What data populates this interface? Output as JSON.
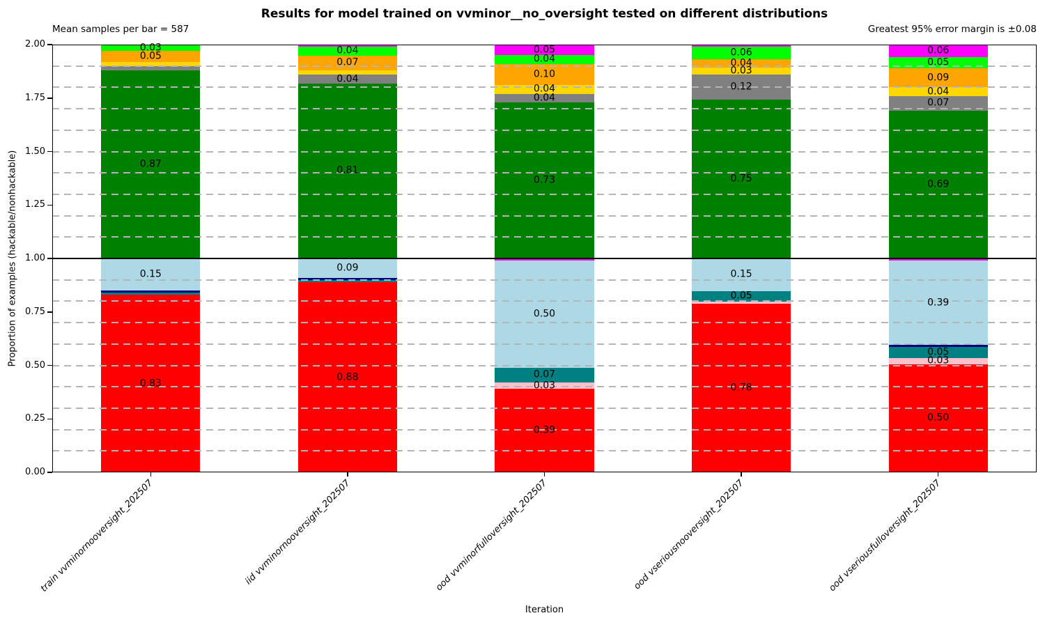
{
  "title": "Results for model trained on vvminor__no_oversight tested on different distributions",
  "annotations": {
    "mean_samples": "Mean samples per bar = 587",
    "error_margin": "Greatest 95% error margin is ±0.08"
  },
  "chart_data": {
    "type": "bar",
    "subtype": "stacked-double-proportion",
    "title": "Results for model trained on vvminor__no_oversight tested on different distributions",
    "xlabel": "Iteration",
    "ylabel": "Proportion of examples (hackable/nonhackable)",
    "ylim": [
      0,
      2
    ],
    "yticks": [
      "0.00",
      "0.25",
      "0.50",
      "0.75",
      "1.00",
      "1.25",
      "1.50",
      "1.75",
      "2.00"
    ],
    "grid": {
      "interval": 0.1,
      "style": "dashed",
      "color": "#b5b5b5",
      "on_top_of_bars": true
    },
    "midline": {
      "y": 1.0,
      "color": "#000000"
    },
    "bar_width_fraction": 0.503,
    "legend": "none",
    "colors": {
      "red": "#ff0000",
      "pink": "#ffc0cb",
      "teal": "#008080",
      "navy": "#000080",
      "lightblue": "#add8e6",
      "magenta": "#ff00ff",
      "darkgreen": "#008000",
      "gray": "#808080",
      "gold": "#ffd700",
      "orange": "#ffa500",
      "lime": "#00ff00"
    },
    "categories": [
      "train vvminornooversight_202507",
      "iid vvminornooversight_202507",
      "ood vvminorfulloversight_202507",
      "ood vseriousnooversight_202507",
      "ood vseriousfulloversight_202507"
    ],
    "bars": [
      {
        "category": "train vvminornooversight_202507",
        "bottom_segments": [
          {
            "color_key": "red",
            "value": 0.83,
            "label": "0.83"
          },
          {
            "color_key": "teal",
            "value": 0.01
          },
          {
            "color_key": "navy",
            "value": 0.01
          },
          {
            "color_key": "lightblue",
            "value": 0.15,
            "label": "0.15"
          }
        ],
        "top_segments": [
          {
            "color_key": "darkgreen",
            "value": 0.87,
            "label": "0.87"
          },
          {
            "color_key": "gray",
            "value": 0.02
          },
          {
            "color_key": "gold",
            "value": 0.02
          },
          {
            "color_key": "orange",
            "value": 0.05,
            "label": "0.05"
          },
          {
            "color_key": "lime",
            "value": 0.03,
            "label": "0.03"
          }
        ]
      },
      {
        "category": "iid vvminornooversight_202507",
        "bottom_segments": [
          {
            "color_key": "red",
            "value": 0.88,
            "label": "0.88"
          },
          {
            "color_key": "teal",
            "value": 0.01
          },
          {
            "color_key": "navy",
            "value": 0.01
          },
          {
            "color_key": "lightblue",
            "value": 0.09,
            "label": "0.09"
          }
        ],
        "top_segments": [
          {
            "color_key": "darkgreen",
            "value": 0.81,
            "label": "0.81"
          },
          {
            "color_key": "gray",
            "value": 0.04,
            "label": "0.04"
          },
          {
            "color_key": "gold",
            "value": 0.02
          },
          {
            "color_key": "orange",
            "value": 0.07,
            "label": "0.07"
          },
          {
            "color_key": "lime",
            "value": 0.04,
            "label": "0.04"
          },
          {
            "color_key": "magenta",
            "value": 0.01
          }
        ]
      },
      {
        "category": "ood vvminorfulloversight_202507",
        "bottom_segments": [
          {
            "color_key": "red",
            "value": 0.39,
            "label": "0.39"
          },
          {
            "color_key": "pink",
            "value": 0.03,
            "label": "0.03"
          },
          {
            "color_key": "teal",
            "value": 0.07,
            "label": "0.07"
          },
          {
            "color_key": "lightblue",
            "value": 0.5,
            "label": "0.50"
          },
          {
            "color_key": "magenta",
            "value": 0.01
          }
        ],
        "top_segments": [
          {
            "color_key": "darkgreen",
            "value": 0.73,
            "label": "0.73"
          },
          {
            "color_key": "gray",
            "value": 0.04,
            "label": "0.04"
          },
          {
            "color_key": "gold",
            "value": 0.04,
            "label": "0.04"
          },
          {
            "color_key": "orange",
            "value": 0.1,
            "label": "0.10"
          },
          {
            "color_key": "lime",
            "value": 0.04,
            "label": "0.04"
          },
          {
            "color_key": "magenta",
            "value": 0.05,
            "label": "0.05"
          }
        ]
      },
      {
        "category": "ood vseriousnooversight_202507",
        "bottom_segments": [
          {
            "color_key": "red",
            "value": 0.78,
            "label": "0.78"
          },
          {
            "color_key": "pink",
            "value": 0.01
          },
          {
            "color_key": "teal",
            "value": 0.05,
            "label": "0.05"
          },
          {
            "color_key": "lightblue",
            "value": 0.15,
            "label": "0.15"
          }
        ],
        "top_segments": [
          {
            "color_key": "darkgreen",
            "value": 0.75,
            "label": "0.75"
          },
          {
            "color_key": "gray",
            "value": 0.12,
            "label": "0.12"
          },
          {
            "color_key": "gold",
            "value": 0.03,
            "label": "0.03"
          },
          {
            "color_key": "orange",
            "value": 0.04,
            "label": "0.04"
          },
          {
            "color_key": "lime",
            "value": 0.06,
            "label": "0.06"
          },
          {
            "color_key": "magenta",
            "value": 0.01
          }
        ]
      },
      {
        "category": "ood vseriousfulloversight_202507",
        "bottom_segments": [
          {
            "color_key": "red",
            "value": 0.5,
            "label": "0.50"
          },
          {
            "color_key": "pink",
            "value": 0.03,
            "label": "0.03"
          },
          {
            "color_key": "teal",
            "value": 0.05,
            "label": "0.05"
          },
          {
            "color_key": "navy",
            "value": 0.01
          },
          {
            "color_key": "lightblue",
            "value": 0.39,
            "label": "0.39"
          },
          {
            "color_key": "magenta",
            "value": 0.01
          }
        ],
        "top_segments": [
          {
            "color_key": "darkgreen",
            "value": 0.69,
            "label": "0.69"
          },
          {
            "color_key": "gray",
            "value": 0.07,
            "label": "0.07"
          },
          {
            "color_key": "gold",
            "value": 0.04,
            "label": "0.04"
          },
          {
            "color_key": "orange",
            "value": 0.09,
            "label": "0.09"
          },
          {
            "color_key": "lime",
            "value": 0.05,
            "label": "0.05"
          },
          {
            "color_key": "magenta",
            "value": 0.06,
            "label": "0.06"
          }
        ]
      }
    ]
  }
}
